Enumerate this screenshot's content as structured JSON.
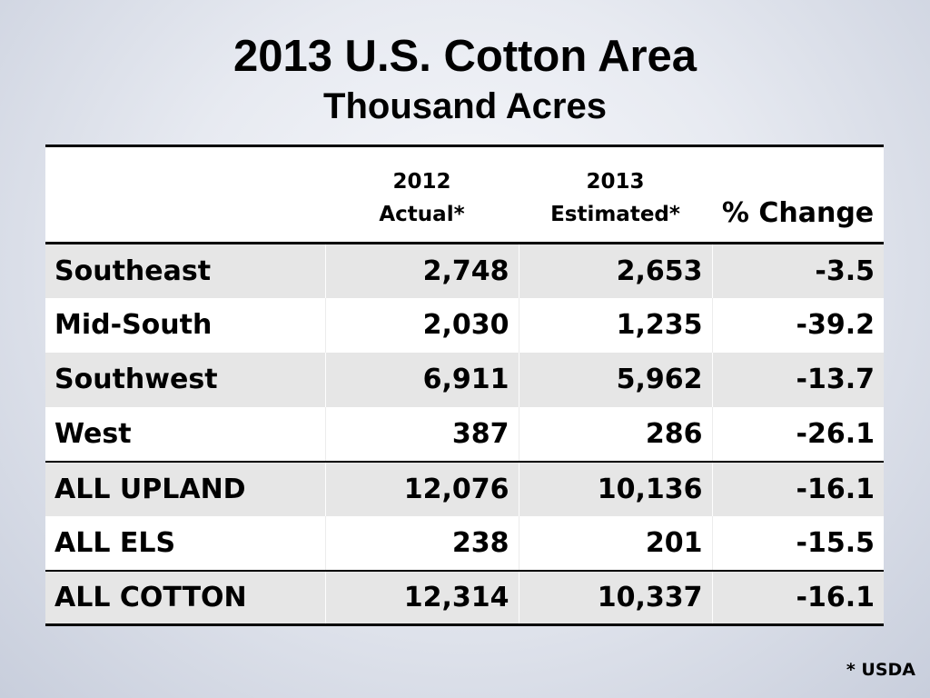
{
  "title": "2013 U.S. Cotton Area",
  "subtitle": "Thousand Acres",
  "table": {
    "headers": {
      "region": "",
      "col_2012_line1": "2012",
      "col_2012_line2": "Actual*",
      "col_2013_line1": "2013",
      "col_2013_line2": "Estimated*",
      "col_change": "% Change"
    },
    "rows": [
      {
        "region": "Southeast",
        "actual_2012": "2,748",
        "estimated_2013": "2,653",
        "pct_change": "-3.5"
      },
      {
        "region": "Mid-South",
        "actual_2012": "2,030",
        "estimated_2013": "1,235",
        "pct_change": "-39.2"
      },
      {
        "region": "Southwest",
        "actual_2012": "6,911",
        "estimated_2013": "5,962",
        "pct_change": "-13.7"
      },
      {
        "region": "West",
        "actual_2012": "387",
        "estimated_2013": "286",
        "pct_change": "-26.1"
      },
      {
        "region": "ALL UPLAND",
        "actual_2012": "12,076",
        "estimated_2013": "10,136",
        "pct_change": "-16.1"
      },
      {
        "region": "ALL ELS",
        "actual_2012": "238",
        "estimated_2013": "201",
        "pct_change": "-15.5"
      },
      {
        "region": "ALL COTTON",
        "actual_2012": "12,314",
        "estimated_2013": "10,337",
        "pct_change": "-16.1"
      }
    ]
  },
  "source_note": "* USDA"
}
